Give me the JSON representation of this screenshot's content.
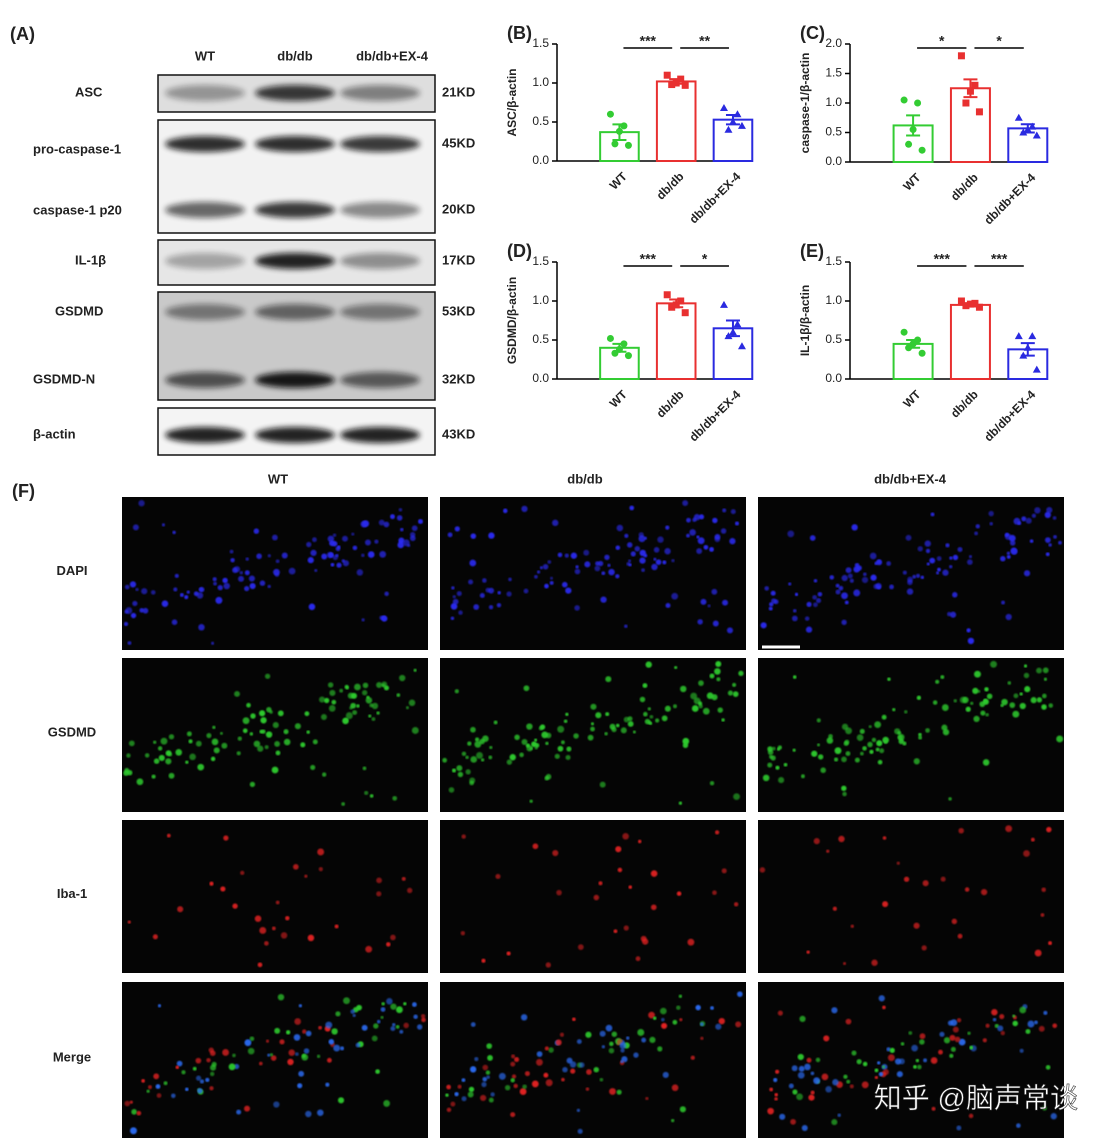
{
  "chart_data": [
    {
      "type": "bar",
      "panel": "(B)",
      "ylabel": "ASC/β-actin",
      "categories": [
        "WT",
        "db/db",
        "db/db+EX-4"
      ],
      "colors": [
        "#33cc33",
        "#e83030",
        "#2a2ae0"
      ],
      "values": [
        0.37,
        1.02,
        0.53
      ],
      "errors": [
        0.1,
        0.03,
        0.06
      ],
      "points": [
        [
          0.6,
          0.45,
          0.38,
          0.22,
          0.2
        ],
        [
          1.1,
          1.05,
          1.0,
          0.98,
          0.97
        ],
        [
          0.68,
          0.6,
          0.5,
          0.4,
          0.45
        ]
      ],
      "ylim": [
        0,
        1.5
      ],
      "yticks": [
        {
          "value": 0,
          "label": "0.0"
        },
        0.5,
        {
          "value": 1,
          "label": "1.0"
        },
        1.5
      ],
      "annotations": [
        "***",
        "**"
      ]
    },
    {
      "type": "bar",
      "panel": "(C)",
      "ylabel": "caspase-1/β-actin",
      "categories": [
        "WT",
        "db/db",
        "db/db+EX-4"
      ],
      "colors": [
        "#33cc33",
        "#e83030",
        "#2a2ae0"
      ],
      "values": [
        0.62,
        1.25,
        0.57
      ],
      "errors": [
        0.17,
        0.15,
        0.07
      ],
      "points": [
        [
          1.05,
          1.0,
          0.55,
          0.3,
          0.2
        ],
        [
          1.8,
          1.3,
          1.2,
          1.0,
          0.85
        ],
        [
          0.75,
          0.6,
          0.55,
          0.5,
          0.45
        ]
      ],
      "ylim": [
        0,
        2
      ],
      "yticks": [
        {
          "value": 0,
          "label": "0.0"
        },
        0.5,
        {
          "value": 1,
          "label": "1.0"
        },
        1.5,
        {
          "value": 2,
          "label": "2.0"
        }
      ],
      "annotations": [
        "*",
        "*"
      ]
    },
    {
      "type": "bar",
      "panel": "(D)",
      "ylabel": "GSDMD/β-actin",
      "categories": [
        "WT",
        "db/db",
        "db/db+EX-4"
      ],
      "colors": [
        "#33cc33",
        "#e83030",
        "#2a2ae0"
      ],
      "values": [
        0.4,
        0.97,
        0.65
      ],
      "errors": [
        0.05,
        0.05,
        0.1
      ],
      "points": [
        [
          0.52,
          0.45,
          0.38,
          0.33,
          0.3
        ],
        [
          1.08,
          1.0,
          0.95,
          0.92,
          0.85
        ],
        [
          0.95,
          0.7,
          0.6,
          0.55,
          0.42
        ]
      ],
      "ylim": [
        0,
        1.5
      ],
      "yticks": [
        {
          "value": 0,
          "label": "0.0"
        },
        0.5,
        {
          "value": 1,
          "label": "1.0"
        },
        1.5
      ],
      "annotations": [
        "***",
        "*"
      ]
    },
    {
      "type": "bar",
      "panel": "(E)",
      "ylabel": "IL-1β/β-actin",
      "categories": [
        "WT",
        "db/db",
        "db/db+EX-4"
      ],
      "colors": [
        "#33cc33",
        "#e83030",
        "#2a2ae0"
      ],
      "values": [
        0.45,
        0.95,
        0.38
      ],
      "errors": [
        0.05,
        0.02,
        0.08
      ],
      "points": [
        [
          0.6,
          0.5,
          0.45,
          0.4,
          0.33
        ],
        [
          1.0,
          0.97,
          0.96,
          0.94,
          0.92
        ],
        [
          0.55,
          0.55,
          0.4,
          0.3,
          0.12
        ]
      ],
      "ylim": [
        0,
        1.5
      ],
      "yticks": [
        {
          "value": 0,
          "label": "0.0"
        },
        0.5,
        {
          "value": 1,
          "label": "1.0"
        },
        1.5
      ],
      "annotations": [
        "***",
        "***"
      ]
    }
  ],
  "blot": {
    "panel": "(A)",
    "lanes": [
      "WT",
      "db/db",
      "db/db+EX-4"
    ],
    "rows": [
      {
        "label": "ASC",
        "size": "21KD"
      },
      {
        "label": "pro-caspase-1",
        "size": "45KD"
      },
      {
        "label": "caspase-1 p20",
        "size": "20KD"
      },
      {
        "label": "IL-1β",
        "size": "17KD"
      },
      {
        "label": "GSDMD",
        "size": "53KD"
      },
      {
        "label": "GSDMD-N",
        "size": "32KD"
      },
      {
        "label": "β-actin",
        "size": "43KD"
      }
    ]
  },
  "fluorescence": {
    "panel": "(F)",
    "columns": [
      "WT",
      "db/db",
      "db/db+EX-4"
    ],
    "rows": [
      "DAPI",
      "GSDMD",
      "Iba-1",
      "Merge"
    ]
  },
  "watermark": "知乎 @脑声常谈"
}
